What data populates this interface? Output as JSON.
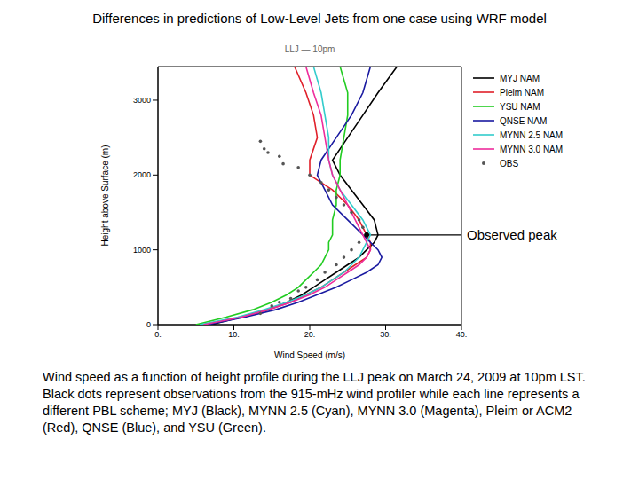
{
  "chart_data": {
    "type": "line",
    "title": "Differences in predictions of Low-Level Jets from one case using WRF model",
    "subtitle": "LLJ — 10pm",
    "x_label": "Wind Speed (m/s)",
    "y_label": "Height above Surface (m)",
    "xlim": [
      0,
      40
    ],
    "xticks": [
      {
        "value": 0,
        "label": "0."
      },
      {
        "value": 10,
        "label": "10."
      },
      {
        "value": 20,
        "label": "20."
      },
      {
        "value": 30,
        "label": "30."
      },
      {
        "value": 40,
        "label": "40."
      }
    ],
    "ylim": [
      0,
      3450
    ],
    "yticks": [
      0,
      1000,
      2000,
      3000
    ],
    "grid": false,
    "legend": "top right",
    "annotation": {
      "text": "Observed peak",
      "x": 27.5,
      "y": 1200
    },
    "caption": "Wind speed as a function of height profile during the LLJ peak on March 24, 2009 at 10pm LST.  Black dots represent observations from the 915-mHz wind profiler while each line represents a different PBL scheme; MYJ (Black), MYNN 2.5 (Cyan), MYNN 3.0 (Magenta), Pleim or ACM2 (Red), QNSE (Blue), and YSU (Green).",
    "series": [
      {
        "name": "MYJ NAM",
        "color": "#000000",
        "marker": "none",
        "line_style": "solid",
        "x": [
          7,
          11,
          14.5,
          17,
          19,
          20.5,
          22,
          23.5,
          25,
          26.5,
          27.5,
          28.5,
          29,
          28.5,
          27,
          25.5,
          24,
          23,
          25,
          27,
          29,
          31.5
        ],
        "y": [
          0,
          100,
          200,
          300,
          400,
          500,
          600,
          700,
          800,
          900,
          1000,
          1100,
          1200,
          1400,
          1600,
          1800,
          2000,
          2200,
          2500,
          2800,
          3100,
          3450
        ]
      },
      {
        "name": "Pleim NAM",
        "color": "#e0202a",
        "marker": "none",
        "line_style": "solid",
        "x": [
          6,
          11,
          14.5,
          17.5,
          19.5,
          21.5,
          23,
          24.5,
          26,
          27.5,
          28,
          28,
          27.5,
          26.5,
          25,
          23,
          20,
          20,
          21,
          20.5,
          19.5,
          18
        ],
        "y": [
          0,
          100,
          200,
          300,
          400,
          500,
          600,
          700,
          800,
          900,
          1000,
          1100,
          1200,
          1400,
          1600,
          1800,
          2000,
          2200,
          2500,
          2800,
          3100,
          3450
        ]
      },
      {
        "name": "YSU NAM",
        "color": "#22cc22",
        "marker": "none",
        "line_style": "solid",
        "x": [
          5,
          9,
          12.5,
          15,
          17,
          18.5,
          19.5,
          20.5,
          21.5,
          22,
          22.5,
          22.5,
          23,
          23,
          23.5,
          23.5,
          24,
          24,
          24.5,
          25,
          25,
          24
        ],
        "y": [
          0,
          100,
          200,
          300,
          400,
          500,
          600,
          700,
          800,
          900,
          1000,
          1100,
          1200,
          1400,
          1600,
          1800,
          2000,
          2200,
          2500,
          2800,
          3100,
          3450
        ]
      },
      {
        "name": "QNSE NAM",
        "color": "#1a1aa0",
        "marker": "none",
        "line_style": "solid",
        "x": [
          6.5,
          11.5,
          15.5,
          18.5,
          21,
          23.5,
          25.5,
          27.5,
          29,
          29.5,
          29,
          28,
          27,
          25,
          23,
          22,
          21,
          21.5,
          23.5,
          25.5,
          27,
          28
        ],
        "y": [
          0,
          100,
          200,
          300,
          400,
          500,
          600,
          700,
          800,
          900,
          1000,
          1100,
          1200,
          1400,
          1600,
          1800,
          2000,
          2200,
          2500,
          2800,
          3100,
          3450
        ]
      },
      {
        "name": "MYNN 2.5 NAM",
        "color": "#33cccc",
        "marker": "none",
        "line_style": "solid",
        "x": [
          5.5,
          10.5,
          14,
          17,
          19.5,
          21.5,
          23,
          24.5,
          25.5,
          26.5,
          27,
          27.5,
          28,
          27,
          25.5,
          24,
          23,
          22.5,
          22.5,
          22,
          21.5,
          20.5
        ],
        "y": [
          0,
          100,
          200,
          300,
          400,
          500,
          600,
          700,
          800,
          900,
          1000,
          1100,
          1200,
          1400,
          1600,
          1800,
          2000,
          2200,
          2500,
          2800,
          3100,
          3450
        ]
      },
      {
        "name": "MYNN 3.0 NAM",
        "color": "#ee2c9c",
        "marker": "none",
        "line_style": "solid",
        "x": [
          6,
          11,
          14.5,
          17.5,
          20,
          22,
          23.5,
          25,
          26.5,
          27.5,
          28,
          27.5,
          27,
          26,
          25,
          24,
          23,
          22.5,
          22,
          21.5,
          20.5,
          19.5
        ],
        "y": [
          0,
          100,
          200,
          300,
          400,
          500,
          600,
          700,
          800,
          900,
          1000,
          1100,
          1200,
          1400,
          1600,
          1800,
          2000,
          2200,
          2500,
          2800,
          3100,
          3450
        ]
      },
      {
        "name": "OBS",
        "color": "#555555",
        "marker": "dot",
        "line_style": "none",
        "x": [
          13.5,
          15,
          16,
          17.5,
          18.5,
          19.5,
          21,
          22,
          23.5,
          24.5,
          25.5,
          26.5,
          27.5,
          27,
          26.5,
          25.5,
          24.5,
          23.5,
          22.5,
          21.5,
          20,
          18.5,
          16.5,
          16,
          14.5,
          14,
          13.5
        ],
        "y": [
          150,
          250,
          300,
          350,
          450,
          500,
          600,
          700,
          800,
          900,
          1000,
          1100,
          1200,
          1300,
          1400,
          1500,
          1600,
          1700,
          1800,
          1900,
          2000,
          2100,
          2150,
          2250,
          2300,
          2350,
          2450
        ]
      }
    ]
  }
}
